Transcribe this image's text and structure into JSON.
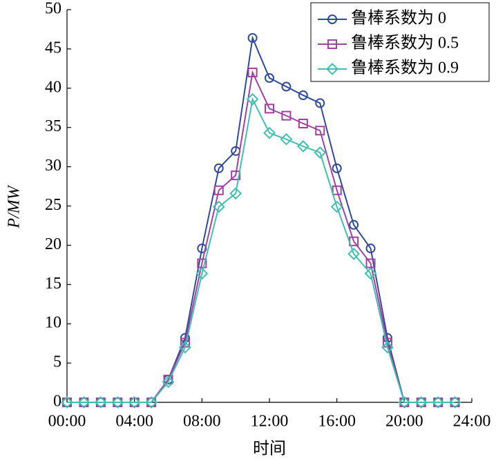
{
  "chart_data": {
    "type": "line",
    "x_label": "时间",
    "y_label": "P/MW",
    "x": [
      0,
      1,
      2,
      3,
      4,
      5,
      6,
      7,
      8,
      9,
      10,
      11,
      12,
      13,
      14,
      15,
      16,
      17,
      18,
      19,
      20,
      21,
      22,
      23
    ],
    "series": [
      {
        "name": "鲁棒系数为 0",
        "color": "#2e4a9a",
        "marker": "circle",
        "values": [
          0,
          0,
          0,
          0,
          0,
          0,
          2.9,
          8.2,
          19.6,
          29.8,
          32,
          46.4,
          41.3,
          40.2,
          39.1,
          38.1,
          29.8,
          22.6,
          19.6,
          8.2,
          0,
          0,
          0,
          0
        ]
      },
      {
        "name": "鲁棒系数为 0.5",
        "color": "#a040a0",
        "marker": "square",
        "values": [
          0,
          0,
          0,
          0,
          0,
          0,
          2.9,
          7.6,
          17.7,
          27,
          28.9,
          42,
          37.4,
          36.5,
          35.5,
          34.6,
          27,
          20.5,
          17.7,
          7.6,
          0,
          0,
          0,
          0
        ]
      },
      {
        "name": "鲁棒系数为 0.9",
        "color": "#40bfb0",
        "marker": "diamond",
        "values": [
          0,
          0,
          0,
          0,
          0,
          0,
          2.6,
          7,
          16.4,
          24.9,
          26.6,
          38.6,
          34.3,
          33.5,
          32.6,
          31.8,
          24.9,
          18.9,
          16.4,
          7,
          0,
          0,
          0,
          0
        ]
      }
    ],
    "xlim": [
      0,
      24
    ],
    "xticks": [
      {
        "value": 0,
        "label": "00:00"
      },
      {
        "value": 4,
        "label": "04:00"
      },
      {
        "value": 8,
        "label": "08:00"
      },
      {
        "value": 12,
        "label": "12:00"
      },
      {
        "value": 16,
        "label": "16:00"
      },
      {
        "value": 20,
        "label": "20:00"
      },
      {
        "value": 24,
        "label": "24:00"
      }
    ],
    "ylim": [
      0,
      50
    ],
    "yticks": [
      0,
      5,
      10,
      15,
      20,
      25,
      30,
      35,
      40,
      45,
      50
    ],
    "legend": "upper right",
    "grid": false
  }
}
